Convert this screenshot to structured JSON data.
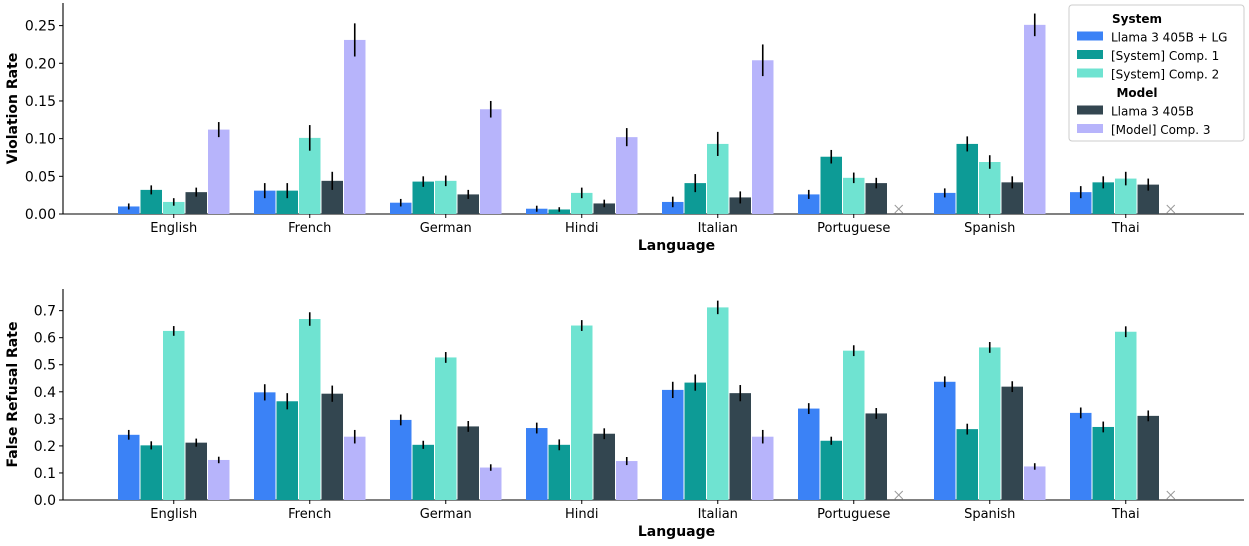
{
  "chart_data": [
    {
      "type": "bar",
      "xlabel": "Language",
      "ylabel": "Violation Rate",
      "ylim": [
        0,
        0.28
      ],
      "yticks": [
        "0.00",
        "0.05",
        "0.10",
        "0.15",
        "0.20",
        "0.25"
      ],
      "grid": false,
      "legend_placement": "top-right",
      "categories": [
        "English",
        "French",
        "German",
        "Hindi",
        "Italian",
        "Portuguese",
        "Spanish",
        "Thai"
      ],
      "series": [
        {
          "name": "Llama 3 405B + LG",
          "color": "#3b82f6",
          "values": [
            0.01,
            0.031,
            0.015,
            0.007,
            0.016,
            0.026,
            0.028,
            0.029
          ],
          "errors": [
            0.004,
            0.01,
            0.005,
            0.004,
            0.007,
            0.006,
            0.006,
            0.008
          ]
        },
        {
          "name": "[System] Comp. 1",
          "color": "#0d9b96",
          "values": [
            0.032,
            0.031,
            0.043,
            0.006,
            0.041,
            0.076,
            0.093,
            0.042
          ],
          "errors": [
            0.006,
            0.01,
            0.007,
            0.003,
            0.012,
            0.009,
            0.01,
            0.008
          ]
        },
        {
          "name": "[System] Comp. 2",
          "color": "#6fe3d1",
          "values": [
            0.016,
            0.101,
            0.044,
            0.028,
            0.093,
            0.048,
            0.069,
            0.047
          ],
          "errors": [
            0.005,
            0.017,
            0.007,
            0.007,
            0.016,
            0.007,
            0.009,
            0.009
          ]
        },
        {
          "name": "Llama 3 405B",
          "color": "#334650",
          "values": [
            0.029,
            0.044,
            0.026,
            0.014,
            0.022,
            0.041,
            0.042,
            0.039
          ],
          "errors": [
            0.006,
            0.012,
            0.006,
            0.005,
            0.008,
            0.007,
            0.008,
            0.008
          ]
        },
        {
          "name": "[Model] Comp. 3",
          "color": "#b7b4fb",
          "values": [
            0.112,
            0.231,
            0.139,
            0.102,
            0.204,
            null,
            0.251,
            null
          ],
          "errors": [
            0.01,
            0.022,
            0.011,
            0.012,
            0.021,
            null,
            0.015,
            null
          ]
        }
      ]
    },
    {
      "type": "bar",
      "xlabel": "Language",
      "ylabel": "False Refusal Rate",
      "ylim": [
        0,
        0.78
      ],
      "yticks": [
        "0.0",
        "0.1",
        "0.2",
        "0.3",
        "0.4",
        "0.5",
        "0.6",
        "0.7"
      ],
      "grid": false,
      "categories": [
        "English",
        "French",
        "German",
        "Hindi",
        "Italian",
        "Portuguese",
        "Spanish",
        "Thai"
      ],
      "series": [
        {
          "name": "Llama 3 405B + LG",
          "color": "#3b82f6",
          "values": [
            0.241,
            0.398,
            0.296,
            0.266,
            0.407,
            0.338,
            0.437,
            0.322
          ],
          "errors": [
            0.018,
            0.03,
            0.02,
            0.02,
            0.03,
            0.02,
            0.02,
            0.02
          ]
        },
        {
          "name": "[System] Comp. 1",
          "color": "#0d9b96",
          "values": [
            0.202,
            0.365,
            0.204,
            0.204,
            0.434,
            0.219,
            0.262,
            0.27
          ],
          "errors": [
            0.015,
            0.03,
            0.015,
            0.02,
            0.03,
            0.015,
            0.02,
            0.02
          ]
        },
        {
          "name": "[System] Comp. 2",
          "color": "#6fe3d1",
          "values": [
            0.625,
            0.669,
            0.527,
            0.645,
            0.712,
            0.552,
            0.564,
            0.622
          ],
          "errors": [
            0.018,
            0.025,
            0.02,
            0.02,
            0.025,
            0.02,
            0.02,
            0.02
          ]
        },
        {
          "name": "Llama 3 405B",
          "color": "#334650",
          "values": [
            0.212,
            0.393,
            0.272,
            0.245,
            0.395,
            0.32,
            0.419,
            0.311
          ],
          "errors": [
            0.015,
            0.03,
            0.02,
            0.02,
            0.03,
            0.02,
            0.02,
            0.02
          ]
        },
        {
          "name": "[Model] Comp. 3",
          "color": "#b7b4fb",
          "values": [
            0.148,
            0.234,
            0.12,
            0.144,
            0.234,
            null,
            0.124,
            null
          ],
          "errors": [
            0.012,
            0.025,
            0.012,
            0.015,
            0.025,
            null,
            0.012,
            null
          ]
        }
      ]
    }
  ],
  "legend": {
    "groups": [
      {
        "title": "System",
        "items": [
          "Llama 3 405B + LG",
          "[System] Comp. 1",
          "[System] Comp. 2"
        ]
      },
      {
        "title": "Model",
        "items": [
          "Llama 3 405B",
          "[Model] Comp. 3"
        ]
      }
    ]
  },
  "missing_marker": "x"
}
